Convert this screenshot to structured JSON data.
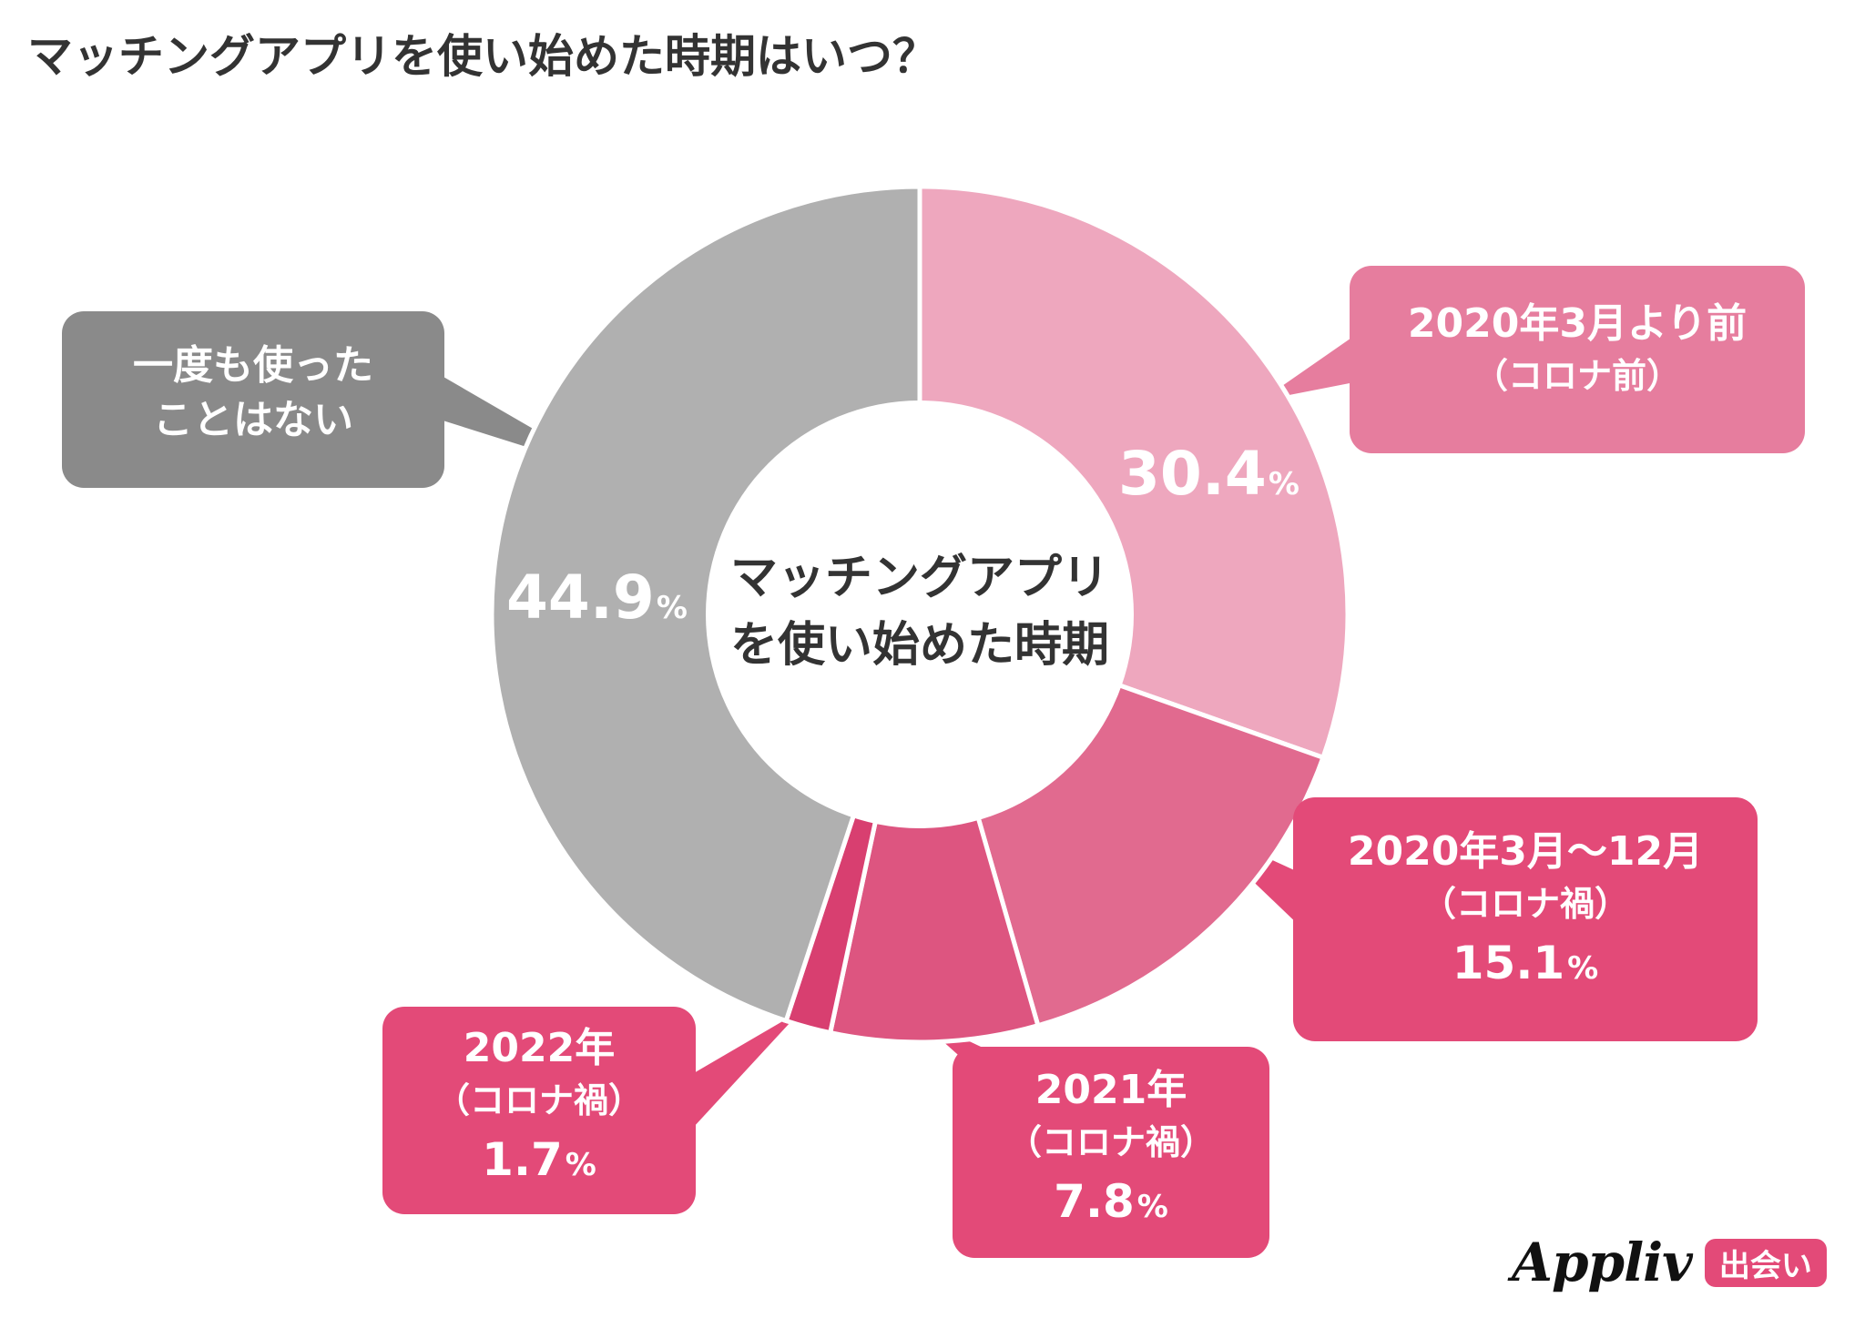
{
  "title": "マッチングアプリを使い始めた時期はいつ？",
  "center_label": [
    "マッチングアプリ",
    "を使い始めた時期"
  ],
  "chart_data": {
    "type": "pie",
    "variant": "donut",
    "title": "マッチングアプリを使い始めた時期はいつ？",
    "slices": [
      {
        "label": "2020年3月より前（コロナ前）",
        "value": 30.4,
        "color": "#eea7be"
      },
      {
        "label": "2020年3月〜12月（コロナ禍）",
        "value": 15.1,
        "color": "#e16a8f"
      },
      {
        "label": "2021年（コロナ禍）",
        "value": 7.8,
        "color": "#dd5580"
      },
      {
        "label": "2022年（コロナ禍）",
        "value": 1.7,
        "color": "#d83f70"
      },
      {
        "label": "一度も使ったことはない",
        "value": 44.9,
        "color": "#b0b0b0"
      }
    ],
    "unit": "%"
  },
  "slice_labels": {
    "s0": {
      "num": "30.4",
      "unit": "%"
    },
    "s4": {
      "num": "44.9",
      "unit": "%"
    }
  },
  "callouts": {
    "before": {
      "line1": "2020年3月より前",
      "line2": "（コロナ前）",
      "color": "#e67d9e"
    },
    "y2020": {
      "line1": "2020年3月〜12月",
      "line2": "（コロナ禍）",
      "value": "15.1",
      "unit": "%",
      "color": "#e34a78"
    },
    "y2021": {
      "line1": "2021年",
      "line2": "（コロナ禍）",
      "value": "7.8",
      "unit": "%",
      "color": "#e34a78"
    },
    "y2022": {
      "line1": "2022年",
      "line2": "（コロナ禍）",
      "value": "1.7",
      "unit": "%",
      "color": "#e34a78"
    },
    "never": {
      "line1": "一度も使った",
      "line2": "ことはない",
      "color": "#8a8a8a"
    }
  },
  "logo": {
    "word": "Appliv",
    "badge": "出会い"
  }
}
